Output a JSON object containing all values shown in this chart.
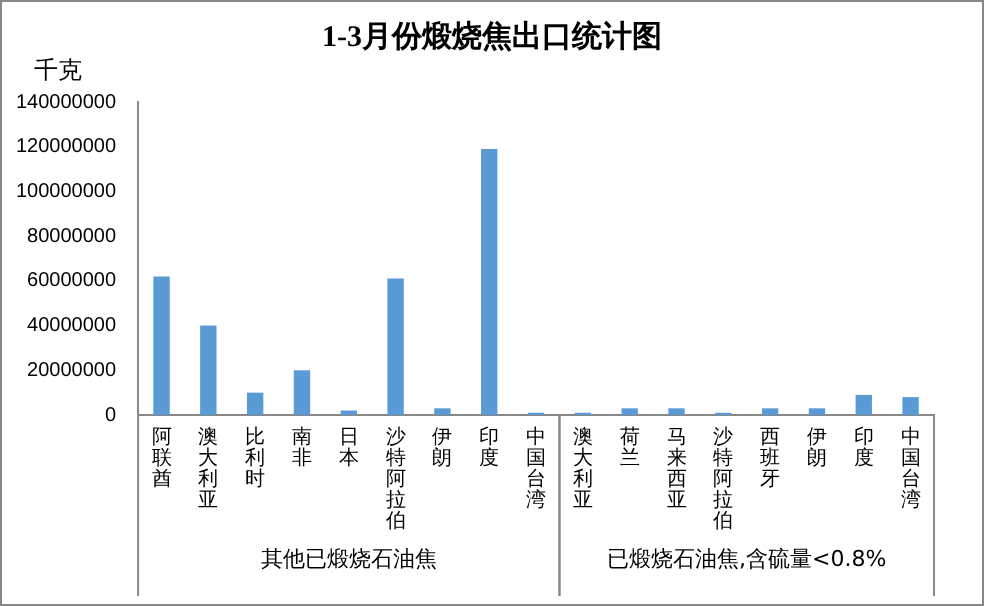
{
  "chart_data": {
    "type": "bar",
    "title": "1-3月份煅烧焦出口统计图",
    "ylabel": "千克",
    "categories": [
      "阿联酋",
      "澳大利亚",
      "比利时",
      "南非",
      "日本",
      "沙特阿拉伯",
      "伊朗",
      "印度",
      "中国台湾",
      "澳大利亚",
      "荷兰",
      "马来西亚",
      "沙特阿拉伯",
      "西班牙",
      "伊朗",
      "印度",
      "中国台湾"
    ],
    "values": [
      62000000,
      40000000,
      10000000,
      20000000,
      2000000,
      61000000,
      3000000,
      119000000,
      1000000,
      1000000,
      3000000,
      3000000,
      1000000,
      3000000,
      3000000,
      9000000,
      8000000
    ],
    "color": "#5b9bd5",
    "ylim": [
      0,
      140000000
    ],
    "yticks": [
      0,
      20000000,
      40000000,
      60000000,
      80000000,
      100000000,
      120000000,
      140000000
    ],
    "grid": false,
    "legend": false,
    "annotations": [
      "其他已煅烧石油焦",
      "已煅烧石油焦,含硫量<0.8%"
    ]
  }
}
